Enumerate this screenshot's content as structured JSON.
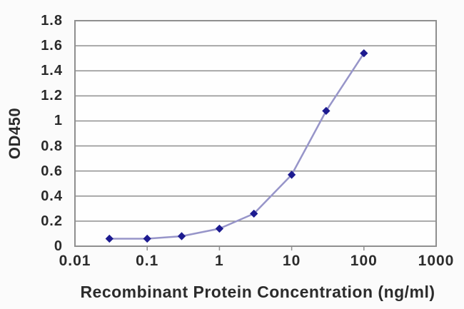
{
  "chart_data": {
    "type": "line",
    "title": "",
    "xlabel": "Recombinant Protein Concentration (ng/ml)",
    "ylabel": "OD450",
    "x_scale": "log",
    "xlim": [
      0.01,
      1000
    ],
    "ylim": [
      0,
      1.8
    ],
    "x_ticks": [
      "0.01",
      "0.1",
      "1",
      "10",
      "100",
      "1000"
    ],
    "y_ticks": [
      "0",
      "0.2",
      "0.4",
      "0.6",
      "0.8",
      "1",
      "1.2",
      "1.4",
      "1.6",
      "1.8"
    ],
    "grid": "horizontal",
    "legend": "none",
    "series": [
      {
        "name": "OD450",
        "marker": "diamond",
        "x": [
          0.03,
          0.1,
          0.3,
          1,
          3,
          10,
          30,
          100
        ],
        "values": [
          0.06,
          0.06,
          0.08,
          0.14,
          0.26,
          0.57,
          1.08,
          1.54
        ],
        "line_color": "#9795c9",
        "marker_color": "#1d1b90"
      }
    ],
    "colors": {
      "grid": "#8f8f8f",
      "border": "#8f8f8f",
      "tick_mark": "#8f8f8f",
      "text": "#2b2b2b",
      "background": "#fbfbfb",
      "plot_background": "#fefefe"
    }
  }
}
